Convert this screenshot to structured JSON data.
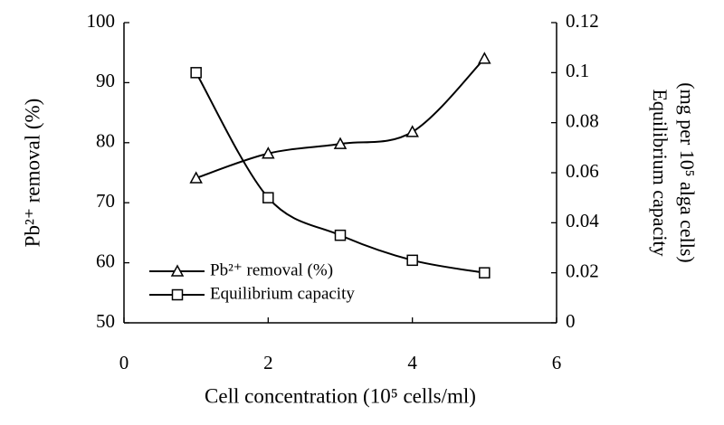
{
  "chart_data": {
    "type": "line",
    "x_label": "Cell concentration (10⁵ cells/ml)",
    "y_label": "Pb²⁺ removal (%)",
    "y2_label": [
      "Equilibrium capacity",
      "(mg per 10⁵ alga cells)"
    ],
    "x": [
      1,
      2,
      3,
      4,
      5
    ],
    "series": [
      {
        "name": "Pb²⁺ removal (%)",
        "color": "#000000",
        "marker": "triangle",
        "values": [
          74.1,
          78.2,
          79.8,
          81.8,
          94
        ]
      },
      {
        "name": "Equilibrium capacity",
        "color": "#000000",
        "marker": "square",
        "axis": "y2",
        "values": [
          0.1,
          0.05,
          0.035,
          0.025,
          0.02
        ]
      }
    ],
    "xlim": [
      0,
      6
    ],
    "xticks": [
      0,
      2,
      4,
      6
    ],
    "ylim": [
      50,
      100
    ],
    "yticks": [
      50,
      60,
      70,
      80,
      90,
      100
    ],
    "y2lim": [
      0,
      0.12
    ],
    "y2ticks": [
      0,
      0.02,
      0.04,
      0.06,
      0.08,
      0.1,
      0.12
    ],
    "smooth": true,
    "grid": false,
    "legend": "lower left"
  }
}
